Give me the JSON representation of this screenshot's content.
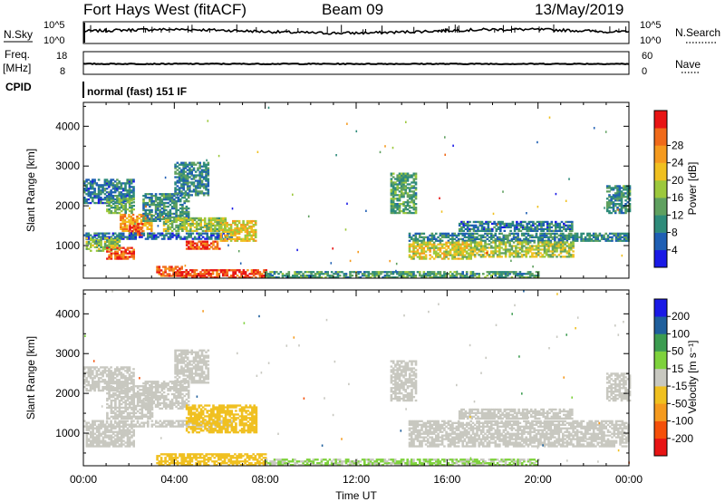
{
  "header": {
    "station": "Fort Hays West (fitACF)",
    "beam": "Beam 09",
    "date": "13/May/2019"
  },
  "strip": {
    "nsky_label": "N.Sky",
    "nsky_ticks": [
      "10^5",
      "10^0"
    ],
    "nsearch_label": "N.Search",
    "nsearch_ticks": [
      "10^5",
      "10^0"
    ],
    "freq_label_top": "Freq.",
    "freq_label_unit": "[MHz]",
    "freq_ticks": [
      "18",
      "8"
    ],
    "nave_label": "Nave",
    "nave_ticks": [
      "60",
      "0"
    ],
    "cpid_label": "CPID",
    "cpid_text": "normal (fast) 151 IF"
  },
  "colors": {
    "power": [
      "#1a1ae6",
      "#1f5fb4",
      "#2e8b7a",
      "#5fa05f",
      "#9cc83c",
      "#f0c020",
      "#f59a1e",
      "#f06a1a",
      "#e81414"
    ],
    "velocity": [
      "#e81414",
      "#f5500a",
      "#f59a1e",
      "#f0c020",
      "#c8c8c0",
      "#7ed23c",
      "#3c9c50",
      "#1f5f9c",
      "#1a1ae6"
    ],
    "ground_scatter": "#c8c8c0"
  },
  "chart_data": [
    {
      "type": "heatmap",
      "name": "power",
      "ylabel": "Slant Range [km]",
      "yticks": [
        "1000",
        "2000",
        "3000",
        "4000"
      ],
      "ylim": [
        180,
        4600
      ],
      "xlim_hours": [
        0,
        24
      ],
      "colorbar_label": "Power [dB]",
      "colorbar_ticks": [
        "4",
        "8",
        "12",
        "16",
        "20",
        "24",
        "28"
      ],
      "colorbar_range": [
        0,
        30
      ],
      "regions": [
        {
          "t": [
            0.0,
            2.2
          ],
          "r": [
            2050,
            2650
          ],
          "v": 7
        },
        {
          "t": [
            1.0,
            2.2
          ],
          "r": [
            1800,
            2200
          ],
          "v": 12
        },
        {
          "t": [
            1.6,
            3.0
          ],
          "r": [
            1350,
            1800
          ],
          "v": 22
        },
        {
          "t": [
            2.0,
            2.6
          ],
          "r": [
            1250,
            1550
          ],
          "v": 27
        },
        {
          "t": [
            2.6,
            4.6
          ],
          "r": [
            1600,
            2300
          ],
          "v": 9
        },
        {
          "t": [
            4.0,
            5.5
          ],
          "r": [
            2250,
            3100
          ],
          "v": 8
        },
        {
          "t": [
            0.0,
            6.5
          ],
          "r": [
            1150,
            1300
          ],
          "v": 6
        },
        {
          "t": [
            0.1,
            1.6
          ],
          "r": [
            850,
            1200
          ],
          "v": 14
        },
        {
          "t": [
            1.0,
            2.2
          ],
          "r": [
            650,
            950
          ],
          "v": 26
        },
        {
          "t": [
            3.5,
            6.2
          ],
          "r": [
            1350,
            1700
          ],
          "v": 14
        },
        {
          "t": [
            4.5,
            6.0
          ],
          "r": [
            900,
            1100
          ],
          "v": 26
        },
        {
          "t": [
            6.0,
            7.6
          ],
          "r": [
            1100,
            1600
          ],
          "v": 18
        },
        {
          "t": [
            3.2,
            4.3
          ],
          "r": [
            220,
            480
          ],
          "v": 25
        },
        {
          "t": [
            4.3,
            8.0
          ],
          "r": [
            180,
            380
          ],
          "v": 27
        },
        {
          "t": [
            8.0,
            20.0
          ],
          "r": [
            180,
            360
          ],
          "v": 10
        },
        {
          "t": [
            13.5,
            14.6
          ],
          "r": [
            1800,
            2800
          ],
          "v": 11
        },
        {
          "t": [
            14.3,
            24.0
          ],
          "r": [
            1100,
            1300
          ],
          "v": 8
        },
        {
          "t": [
            14.3,
            17.0
          ],
          "r": [
            650,
            1100
          ],
          "v": 17
        },
        {
          "t": [
            17.0,
            21.5
          ],
          "r": [
            700,
            1100
          ],
          "v": 15
        },
        {
          "t": [
            16.5,
            21.5
          ],
          "r": [
            1350,
            1600
          ],
          "v": 7
        },
        {
          "t": [
            23.0,
            24.0
          ],
          "r": [
            1800,
            2500
          ],
          "v": 9
        }
      ]
    },
    {
      "type": "heatmap",
      "name": "velocity",
      "ylabel": "Slant Range [km]",
      "yticks": [
        "1000",
        "2000",
        "3000",
        "4000"
      ],
      "ylim": [
        180,
        4600
      ],
      "xlim_hours": [
        0,
        24
      ],
      "xlabel": "Time UT",
      "xticks": [
        "00:00",
        "04:00",
        "08:00",
        "12:00",
        "16:00",
        "20:00",
        "00:00"
      ],
      "colorbar_label": "Velocity [m s⁻¹]",
      "colorbar_ticks": [
        "-200",
        "-100",
        "-50",
        "-15",
        "15",
        "50",
        "100",
        "200"
      ],
      "colorbar_range": [
        -250,
        250
      ],
      "regions": [
        {
          "t": [
            0.0,
            2.2
          ],
          "r": [
            2050,
            2650
          ],
          "v": 0
        },
        {
          "t": [
            1.0,
            3.0
          ],
          "r": [
            1350,
            2200
          ],
          "v": 0
        },
        {
          "t": [
            2.6,
            4.6
          ],
          "r": [
            1600,
            2300
          ],
          "v": 0
        },
        {
          "t": [
            4.0,
            5.5
          ],
          "r": [
            2250,
            3100
          ],
          "v": 0
        },
        {
          "t": [
            0.0,
            6.5
          ],
          "r": [
            1150,
            1300
          ],
          "v": 0
        },
        {
          "t": [
            0.1,
            2.2
          ],
          "r": [
            650,
            1200
          ],
          "v": 0
        },
        {
          "t": [
            4.5,
            7.6
          ],
          "r": [
            1000,
            1700
          ],
          "v": -55
        },
        {
          "t": [
            3.2,
            8.0
          ],
          "r": [
            180,
            480
          ],
          "v": -50
        },
        {
          "t": [
            8.0,
            20.0
          ],
          "r": [
            180,
            360
          ],
          "v": 30
        },
        {
          "t": [
            13.5,
            14.6
          ],
          "r": [
            1800,
            2800
          ],
          "v": 0
        },
        {
          "t": [
            14.3,
            24.0
          ],
          "r": [
            650,
            1300
          ],
          "v": 0
        },
        {
          "t": [
            16.5,
            21.5
          ],
          "r": [
            1350,
            1600
          ],
          "v": 0
        },
        {
          "t": [
            23.0,
            24.0
          ],
          "r": [
            1800,
            2500
          ],
          "v": 0
        }
      ]
    }
  ]
}
